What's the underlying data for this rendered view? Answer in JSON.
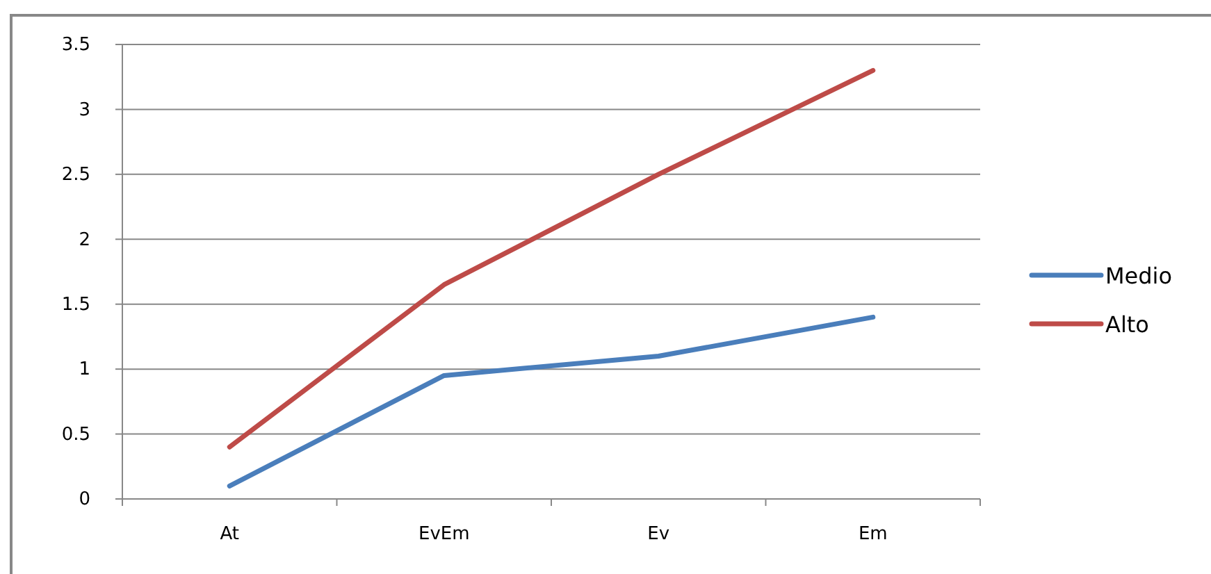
{
  "chart_data": {
    "type": "line",
    "categories": [
      "At",
      "EvEm",
      "Ev",
      "Em"
    ],
    "series": [
      {
        "name": "Medio",
        "color": "#4a7ebb",
        "values": [
          0.1,
          0.95,
          1.1,
          1.4
        ]
      },
      {
        "name": "Alto",
        "color": "#be4b48",
        "values": [
          0.4,
          1.65,
          2.5,
          3.3
        ]
      }
    ],
    "ylim": [
      0,
      3.5
    ],
    "yticks": [
      0,
      0.5,
      1,
      1.5,
      2,
      2.5,
      3,
      3.5
    ],
    "grid": "y",
    "legend": "right",
    "marker": "none",
    "line_style": "solid"
  }
}
